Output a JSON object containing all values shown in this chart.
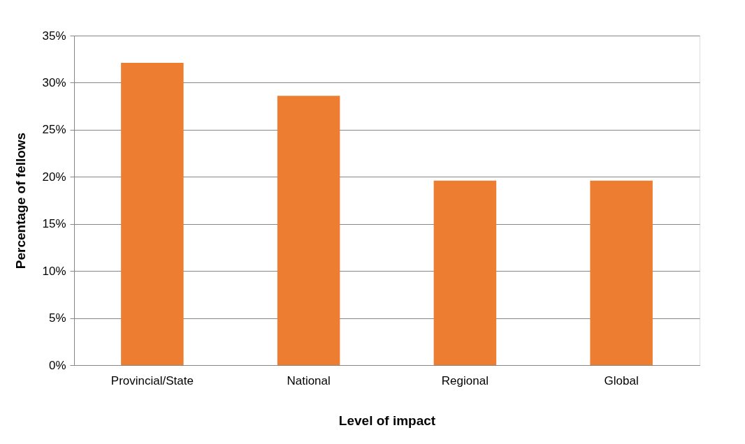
{
  "chart_data": {
    "type": "bar",
    "xlabel": "Level of impact",
    "ylabel": "Percentage of fellows",
    "categories": [
      "Provincial/State",
      "National",
      "Regional",
      "Global"
    ],
    "values": [
      32.1,
      28.6,
      19.6,
      19.6
    ],
    "color": "#ed7d31",
    "ylim": [
      0,
      35
    ],
    "yticks": [
      {
        "value": 0,
        "label": "0%"
      },
      {
        "value": 5,
        "label": "5%"
      },
      {
        "value": 10,
        "label": "10%"
      },
      {
        "value": 15,
        "label": "15%"
      },
      {
        "value": 20,
        "label": "20%"
      },
      {
        "value": 25,
        "label": "25%"
      },
      {
        "value": 30,
        "label": "30%"
      },
      {
        "value": 35,
        "label": "35%"
      }
    ],
    "grid": "y"
  }
}
